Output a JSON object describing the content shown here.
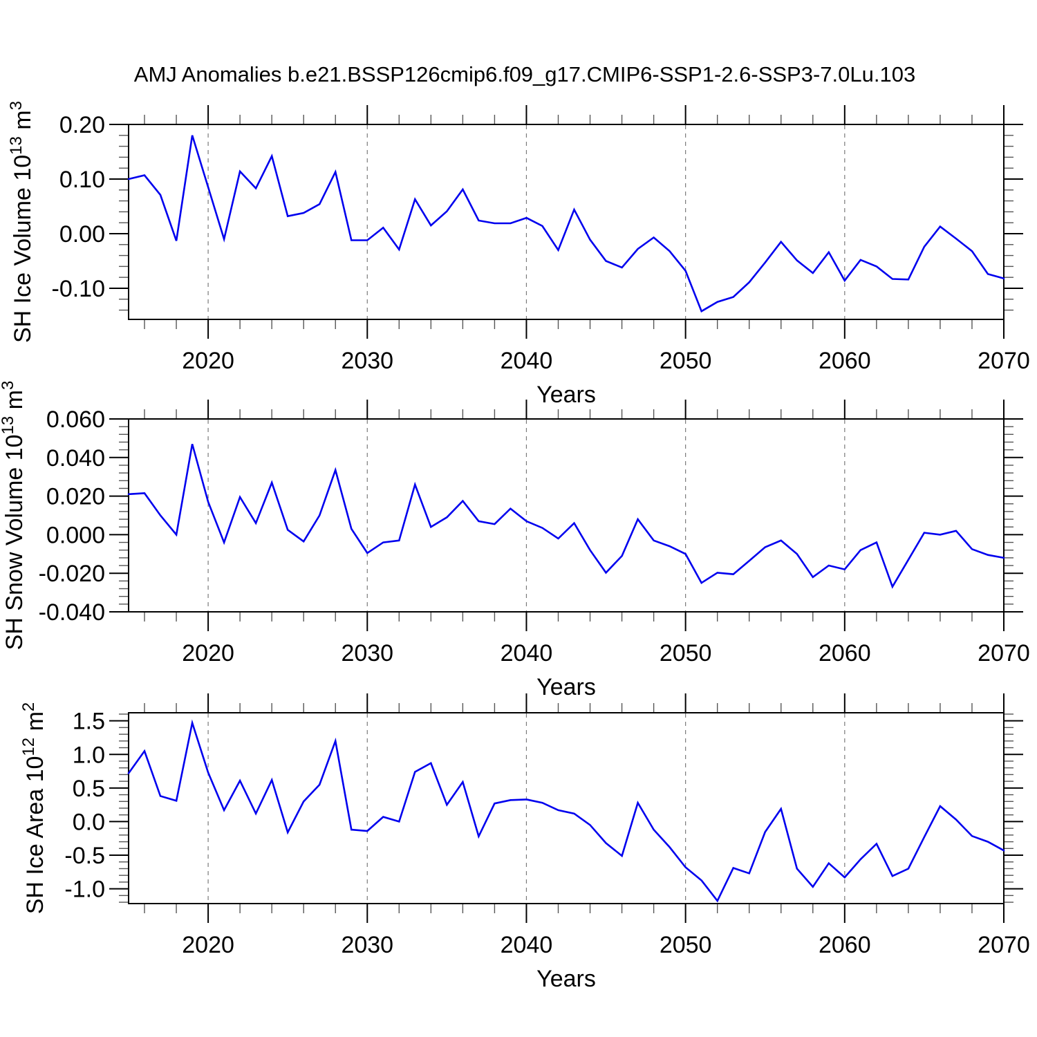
{
  "title": "AMJ Anomalies b.e21.BSSP126cmip6.f09_g17.CMIP6-SSP1-2.6-SSP3-7.0Lu.103",
  "colors": {
    "line": "#0000ee",
    "axis": "#000000",
    "grid": "#7a7a7a",
    "minor_tick": "#555555",
    "background": "#ffffff"
  },
  "x_axis": {
    "label": "Years",
    "start": 2015,
    "end": 2070,
    "major_ticks": [
      2020,
      2030,
      2040,
      2050,
      2060,
      2070
    ],
    "major_tick_labels": [
      "2020",
      "2030",
      "2040",
      "2050",
      "2060",
      "2070"
    ],
    "minor_step": 2,
    "gridline_years": [
      2020,
      2030,
      2040,
      2050,
      2060
    ],
    "years": [
      2015,
      2016,
      2017,
      2018,
      2019,
      2020,
      2021,
      2022,
      2023,
      2024,
      2025,
      2026,
      2027,
      2028,
      2029,
      2030,
      2031,
      2032,
      2033,
      2034,
      2035,
      2036,
      2037,
      2038,
      2039,
      2040,
      2041,
      2042,
      2043,
      2044,
      2045,
      2046,
      2047,
      2048,
      2049,
      2050,
      2051,
      2052,
      2053,
      2054,
      2055,
      2056,
      2057,
      2058,
      2059,
      2060,
      2061,
      2062,
      2063,
      2064,
      2065,
      2066,
      2067,
      2068,
      2069,
      2070
    ]
  },
  "chart_data": [
    {
      "type": "line",
      "series_name": "SH Ice Volume anomaly",
      "ylabel": "SH Ice Volume 10¹³ m³",
      "ylabel_parts": [
        {
          "t": "SH Ice Volume 10"
        },
        {
          "t": "13",
          "sup": true
        },
        {
          "t": " m"
        },
        {
          "t": "3",
          "sup": true
        }
      ],
      "ylim": [
        -0.157,
        0.2
      ],
      "yticks": [
        {
          "v": 0.2,
          "label": "0.20"
        },
        {
          "v": 0.1,
          "label": "0.10"
        },
        {
          "v": 0.0,
          "label": "0.00"
        },
        {
          "v": -0.1,
          "label": "-0.10"
        }
      ],
      "yminor_step": 0.02,
      "values": [
        0.1,
        0.107,
        0.071,
        -0.013,
        0.18,
        0.085,
        -0.01,
        0.114,
        0.083,
        0.142,
        0.032,
        0.038,
        0.054,
        0.113,
        -0.012,
        -0.012,
        0.011,
        -0.029,
        0.063,
        0.015,
        0.041,
        0.081,
        0.024,
        0.019,
        0.019,
        0.029,
        0.014,
        -0.03,
        0.044,
        -0.011,
        -0.05,
        -0.062,
        -0.028,
        -0.007,
        -0.032,
        -0.068,
        -0.142,
        -0.125,
        -0.116,
        -0.089,
        -0.053,
        -0.015,
        -0.049,
        -0.072,
        -0.034,
        -0.086,
        -0.048,
        -0.06,
        -0.083,
        -0.084,
        -0.024,
        0.013,
        -0.009,
        -0.032,
        -0.074,
        -0.082
      ]
    },
    {
      "type": "line",
      "series_name": "SH Snow Volume anomaly",
      "ylabel": "SH Snow Volume 10¹³ m³",
      "ylabel_parts": [
        {
          "t": "SH Snow Volume 10"
        },
        {
          "t": "13",
          "sup": true
        },
        {
          "t": " m"
        },
        {
          "t": "3",
          "sup": true
        }
      ],
      "ylim": [
        -0.04,
        0.06
      ],
      "yticks": [
        {
          "v": 0.06,
          "label": "0.060"
        },
        {
          "v": 0.04,
          "label": "0.040"
        },
        {
          "v": 0.02,
          "label": "0.020"
        },
        {
          "v": 0.0,
          "label": "0.000"
        },
        {
          "v": -0.02,
          "label": "-0.020"
        },
        {
          "v": -0.04,
          "label": "-0.040"
        }
      ],
      "yminor_step": 0.004,
      "values": [
        0.021,
        0.0215,
        0.01,
        0.0,
        0.047,
        0.017,
        -0.004,
        0.0195,
        0.006,
        0.027,
        0.0025,
        -0.0035,
        0.01,
        0.0335,
        0.003,
        -0.0095,
        -0.004,
        -0.003,
        0.026,
        0.004,
        0.009,
        0.0175,
        0.007,
        0.0055,
        0.0135,
        0.007,
        0.0035,
        -0.002,
        0.006,
        -0.008,
        -0.0197,
        -0.011,
        0.008,
        -0.003,
        -0.006,
        -0.01,
        -0.025,
        -0.0197,
        -0.0205,
        -0.0136,
        -0.0065,
        -0.003,
        -0.01,
        -0.022,
        -0.016,
        -0.018,
        -0.008,
        -0.004,
        -0.027,
        -0.013,
        0.001,
        0.0,
        0.002,
        -0.0075,
        -0.0105,
        -0.012
      ]
    },
    {
      "type": "line",
      "series_name": "SH Ice Area anomaly",
      "ylabel": "SH Ice Area 10¹² m²",
      "ylabel_parts": [
        {
          "t": "SH Ice Area 10"
        },
        {
          "t": "12",
          "sup": true
        },
        {
          "t": " m"
        },
        {
          "t": "2",
          "sup": true
        }
      ],
      "ylim": [
        -1.22,
        1.62
      ],
      "yticks": [
        {
          "v": 1.5,
          "label": "1.5"
        },
        {
          "v": 1.0,
          "label": "1.0"
        },
        {
          "v": 0.5,
          "label": "0.5"
        },
        {
          "v": 0.0,
          "label": "0.0"
        },
        {
          "v": -0.5,
          "label": "-0.5"
        },
        {
          "v": -1.0,
          "label": "-1.0"
        }
      ],
      "yminor_step": 0.1,
      "values": [
        0.72,
        1.05,
        0.38,
        0.31,
        1.47,
        0.73,
        0.17,
        0.61,
        0.12,
        0.62,
        -0.16,
        0.3,
        0.55,
        1.2,
        -0.12,
        -0.14,
        0.07,
        0.0,
        0.74,
        0.87,
        0.25,
        0.59,
        -0.22,
        0.27,
        0.32,
        0.33,
        0.28,
        0.17,
        0.12,
        -0.05,
        -0.32,
        -0.51,
        0.28,
        -0.12,
        -0.38,
        -0.68,
        -0.875,
        -1.18,
        -0.69,
        -0.77,
        -0.155,
        0.19,
        -0.7,
        -0.97,
        -0.62,
        -0.83,
        -0.56,
        -0.33,
        -0.81,
        -0.7,
        -0.23,
        0.23,
        0.03,
        -0.215,
        -0.3,
        -0.43
      ]
    }
  ]
}
